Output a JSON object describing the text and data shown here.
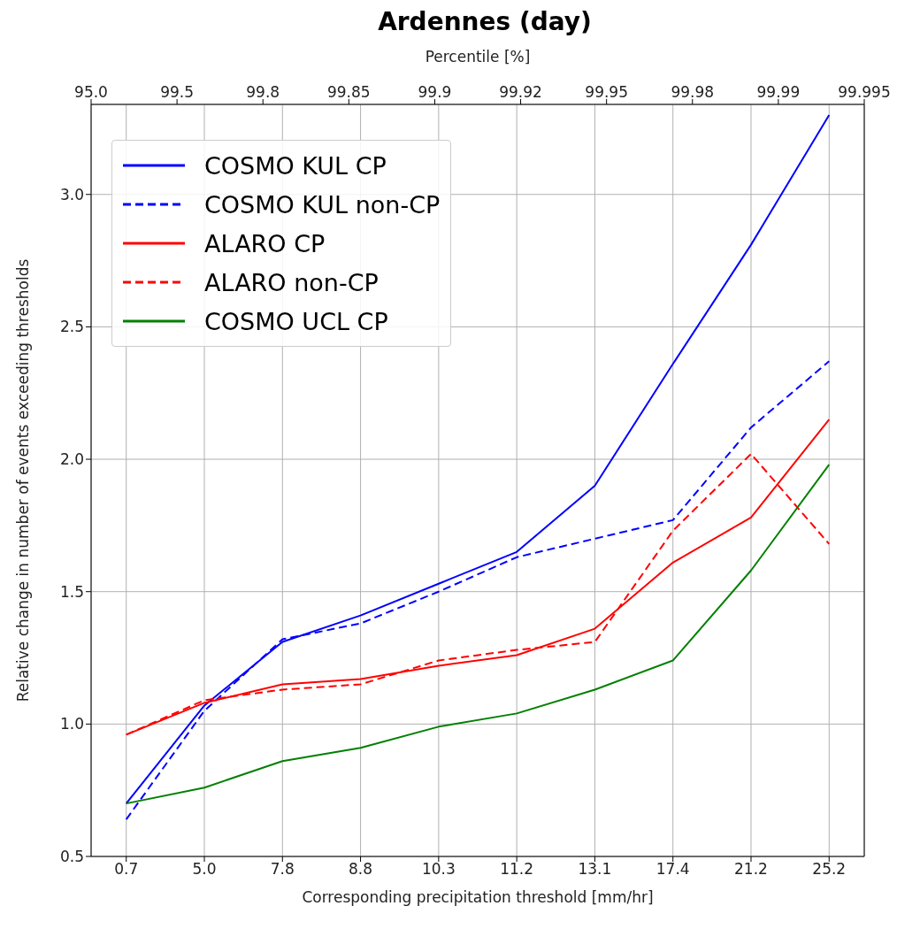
{
  "chart_data": {
    "type": "line",
    "title": "Ardennes (day)",
    "xlabel": "Corresponding precipitation threshold [mm/hr]",
    "ylabel": "Relative change in number of events exceeding thresholds",
    "x2label": "Percentile [%]",
    "categories": [
      "0.7",
      "5.0",
      "7.8",
      "8.8",
      "10.3",
      "11.2",
      "13.1",
      "17.4",
      "21.2",
      "25.2"
    ],
    "annotations": [
      "95.0",
      "99.5",
      "99.8",
      "99.85",
      "99.9",
      "99.92",
      "99.95",
      "99.98",
      "99.99",
      "99.995"
    ],
    "ylim": [
      0.5,
      3.34
    ],
    "yticks": [
      {
        "value": 0.5,
        "label": "0.5"
      },
      {
        "value": 1,
        "label": "1.0"
      },
      {
        "value": 1.5,
        "label": "1.5"
      },
      {
        "value": 2,
        "label": "2.0"
      },
      {
        "value": 2.5,
        "label": "2.5"
      },
      {
        "value": 3,
        "label": "3.0"
      }
    ],
    "grid": true,
    "legend": "top left",
    "marker": "none",
    "series": [
      {
        "name": "COSMO KUL CP",
        "color": "#0000ff",
        "line_style": "solid",
        "values": [
          0.7,
          1.07,
          1.31,
          1.41,
          1.53,
          1.65,
          1.9,
          2.36,
          2.81,
          3.3
        ]
      },
      {
        "name": "COSMO KUL non-CP",
        "color": "#0000ff",
        "line_style": "dashed",
        "values": [
          0.64,
          1.05,
          1.32,
          1.38,
          1.5,
          1.63,
          1.7,
          1.77,
          2.12,
          2.37
        ]
      },
      {
        "name": "ALARO CP",
        "color": "#ff0000",
        "line_style": "solid",
        "values": [
          0.96,
          1.08,
          1.15,
          1.17,
          1.22,
          1.26,
          1.36,
          1.61,
          1.78,
          2.15
        ]
      },
      {
        "name": "ALARO non-CP",
        "color": "#ff0000",
        "line_style": "dashed",
        "values": [
          0.96,
          1.09,
          1.13,
          1.15,
          1.24,
          1.28,
          1.31,
          1.73,
          2.02,
          1.68
        ]
      },
      {
        "name": "COSMO UCL CP",
        "color": "#008000",
        "line_style": "solid",
        "values": [
          0.7,
          0.76,
          0.86,
          0.91,
          0.99,
          1.04,
          1.13,
          1.24,
          1.58,
          1.98
        ]
      }
    ]
  }
}
